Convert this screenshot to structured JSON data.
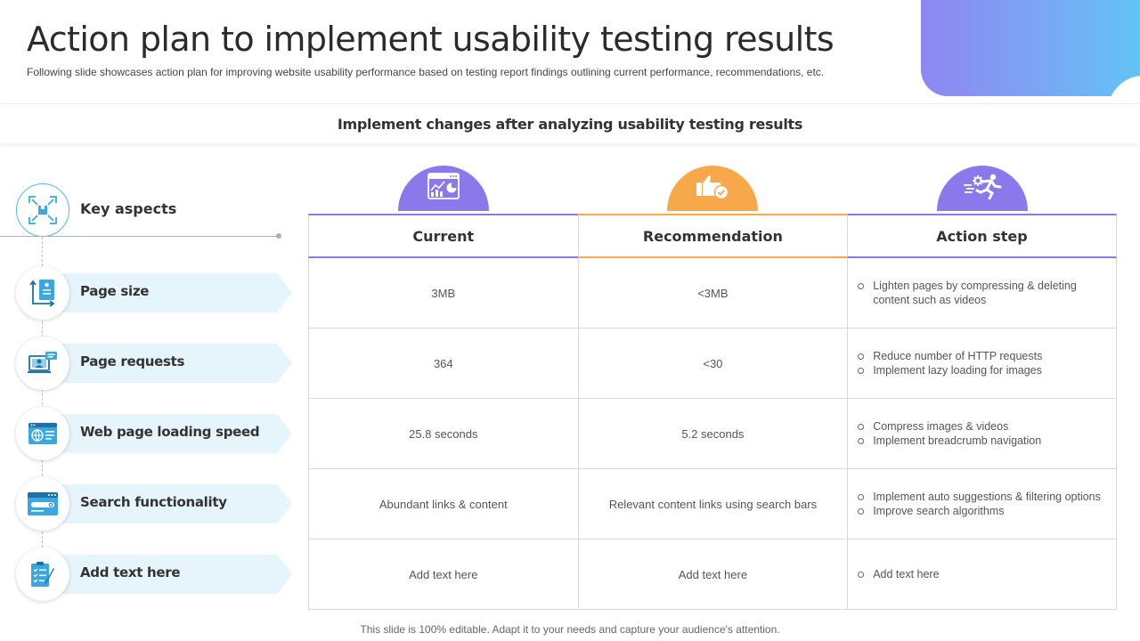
{
  "header": {
    "title": "Action plan to implement usability testing results",
    "subtitle": "Following slide showcases action plan for improving website usability performance based on testing report findings outlining current performance, recommendations, etc."
  },
  "banner": {
    "text": "Implement changes after analyzing usability testing results"
  },
  "key_aspects": {
    "label": "Key aspects",
    "icon": "focus-frame-icon",
    "items": [
      {
        "label": "Page size",
        "icon": "document-resize-icon"
      },
      {
        "label": "Page requests",
        "icon": "user-screen-icon"
      },
      {
        "label": "Web page loading speed",
        "icon": "globe-browser-icon"
      },
      {
        "label": "Search functionality",
        "icon": "search-bar-icon"
      },
      {
        "label": "Add text here",
        "icon": "checklist-pen-icon"
      }
    ]
  },
  "columns": [
    {
      "label": "Current",
      "icon": "analytics-chart-icon",
      "color": "#8b79ec"
    },
    {
      "label": "Recommendation",
      "icon": "thumbs-up-check-icon",
      "color": "#f7a84a"
    },
    {
      "label": "Action step",
      "icon": "running-gear-icon",
      "color": "#8b79ec"
    }
  ],
  "rows": [
    {
      "current": "3MB",
      "recommendation": "<3MB",
      "actions": [
        "Lighten pages by compressing & deleting content such as videos"
      ]
    },
    {
      "current": "364",
      "recommendation": "<30",
      "actions": [
        "Reduce number of HTTP requests",
        "Implement lazy loading for images"
      ]
    },
    {
      "current": "25.8 seconds",
      "recommendation": "5.2 seconds",
      "actions": [
        "Compress images & videos",
        "Implement breadcrumb navigation"
      ]
    },
    {
      "current": "Abundant links & content",
      "recommendation": "Relevant content links using search bars",
      "actions": [
        "Implement auto suggestions & filtering options",
        "Improve search algorithms"
      ]
    },
    {
      "current": "Add text here",
      "recommendation": "Add text here",
      "actions": [
        "Add text here"
      ]
    }
  ],
  "footer": {
    "text": "This slide is 100% editable. Adapt it to your needs and capture your audience's attention."
  }
}
